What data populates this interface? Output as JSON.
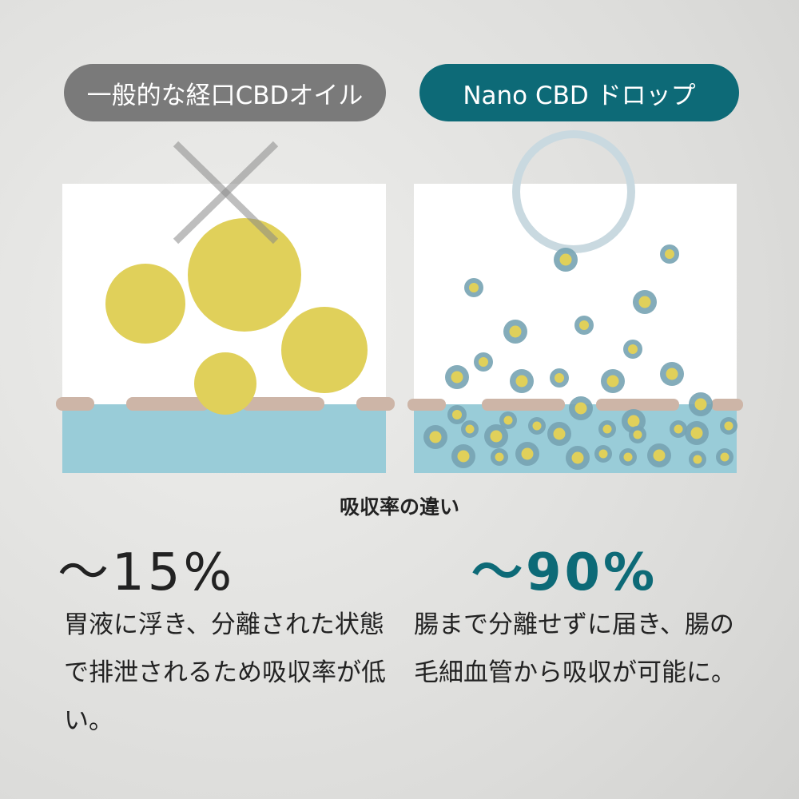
{
  "labels": {
    "conventional": "一般的な経口CBDオイル",
    "nano": "Nano CBD ドロップ"
  },
  "subtitle": "吸収率の違い",
  "conventional": {
    "rate": "～15%",
    "description": "胃液に浮き、分離された状態で排泄されるため吸収率が低い。"
  },
  "nano": {
    "rate": "～90%",
    "description": "腸まで分離せずに届き、腸の毛細血管から吸収が可能に。"
  },
  "icons": {
    "conventional_mark": "x-mark-icon",
    "nano_mark": "circle-mark-icon"
  },
  "colors": {
    "teal": "#0d6a77",
    "gray": "#7a7a7a",
    "oil": "#e0d05a",
    "particle_shell": "#77a3b2",
    "intestine": "#99ccd8",
    "membrane": "#cdb5a7"
  }
}
